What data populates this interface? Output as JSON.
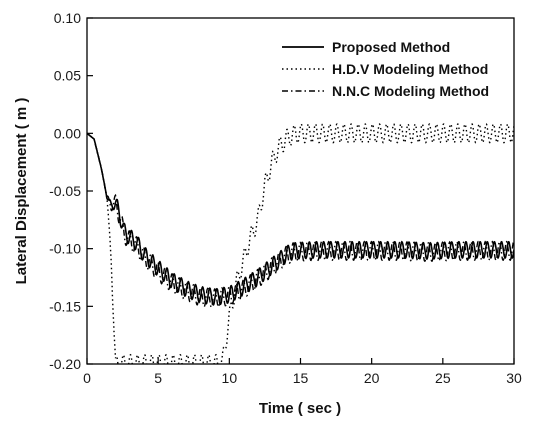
{
  "chart_data": {
    "type": "line",
    "title": "",
    "xlabel": "Time ( sec )",
    "ylabel": "Lateral Displacement ( m )",
    "xlim": [
      0,
      30
    ],
    "ylim": [
      -0.2,
      0.1
    ],
    "xticks": [
      0,
      5,
      10,
      15,
      20,
      25,
      30
    ],
    "xtick_labels": [
      "0",
      "5",
      "10",
      "15",
      "20",
      "25",
      "30"
    ],
    "yticks": [
      0.1,
      0.05,
      0.0,
      -0.05,
      -0.1,
      -0.15,
      -0.2
    ],
    "ytick_labels": [
      "0.10",
      "0.05",
      "0.00",
      "-0.05",
      "-0.10",
      "-0.15",
      "-0.20"
    ],
    "grid": false,
    "legend_position": "top-right",
    "series": [
      {
        "name": "Proposed Method",
        "style": "solid",
        "color": "#000000",
        "x": [
          0,
          0.5,
          1.0,
          1.4,
          1.7,
          2.0,
          2.3,
          2.6,
          3.0,
          3.5,
          4,
          5,
          6,
          7,
          8,
          9,
          10,
          11,
          12,
          13,
          14,
          14.5,
          16,
          18,
          20,
          22,
          24,
          26,
          28,
          30
        ],
        "y": [
          0.0,
          -0.005,
          -0.03,
          -0.055,
          -0.063,
          -0.06,
          -0.07,
          -0.085,
          -0.09,
          -0.095,
          -0.105,
          -0.117,
          -0.128,
          -0.135,
          -0.14,
          -0.142,
          -0.14,
          -0.133,
          -0.125,
          -0.115,
          -0.105,
          -0.102,
          -0.101,
          -0.101,
          -0.101,
          -0.101,
          -0.102,
          -0.101,
          -0.101,
          -0.101
        ],
        "oscillation_amplitude": 0.007
      },
      {
        "name": "H.D.V Modeling Method",
        "style": "dotted",
        "color": "#000000",
        "x": [
          0,
          0.5,
          1.0,
          1.4,
          1.7,
          2.0,
          9.5,
          10.0,
          10.5,
          11.0,
          11.5,
          12.0,
          12.5,
          13.0,
          13.5,
          14.0,
          14.5,
          15,
          20,
          25,
          30
        ],
        "y": [
          0.0,
          -0.005,
          -0.03,
          -0.055,
          -0.11,
          -0.2,
          -0.2,
          -0.16,
          -0.13,
          -0.11,
          -0.09,
          -0.075,
          -0.045,
          -0.025,
          -0.012,
          -0.005,
          -0.001,
          0.0,
          0.0,
          0.0,
          0.0
        ],
        "oscillation_amplitude": 0.008
      },
      {
        "name": "N.N.C Modeling Method",
        "style": "dashdot",
        "color": "#000000",
        "x": [
          0,
          0.5,
          1.0,
          1.4,
          1.7,
          2.0,
          2.3,
          2.6,
          3.0,
          3.5,
          4,
          5,
          6,
          7,
          8,
          9,
          10,
          11,
          12,
          13,
          14,
          14.5,
          16,
          18,
          20,
          22,
          24,
          26,
          28,
          30
        ],
        "y": [
          0.0,
          -0.005,
          -0.03,
          -0.055,
          -0.063,
          -0.06,
          -0.072,
          -0.087,
          -0.093,
          -0.098,
          -0.107,
          -0.12,
          -0.13,
          -0.137,
          -0.142,
          -0.143,
          -0.141,
          -0.135,
          -0.126,
          -0.116,
          -0.106,
          -0.103,
          -0.102,
          -0.102,
          -0.102,
          -0.102,
          -0.103,
          -0.102,
          -0.102,
          -0.102
        ],
        "oscillation_amplitude": 0.008
      }
    ]
  }
}
